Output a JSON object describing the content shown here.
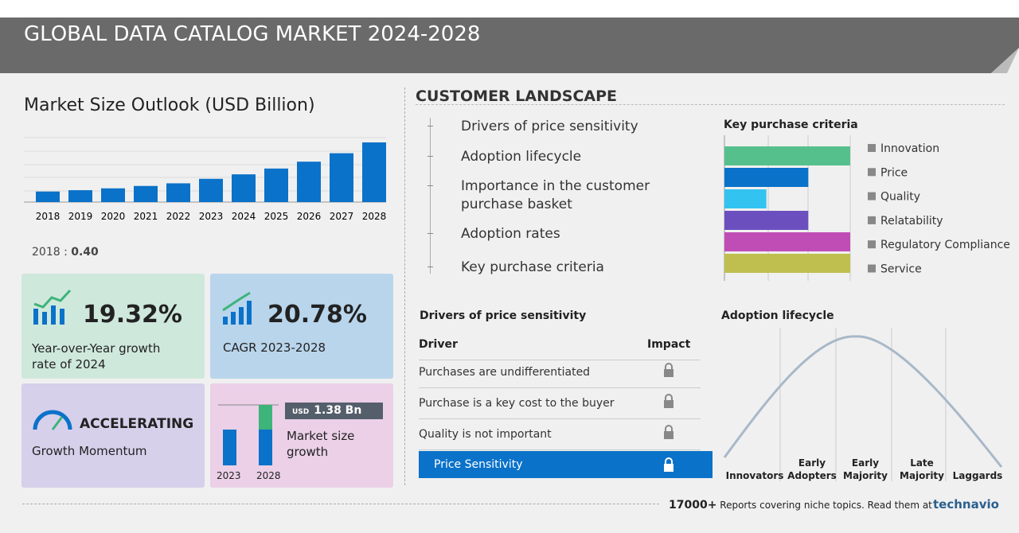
{
  "header": {
    "title": "GLOBAL DATA CATALOG MARKET 2024-2028"
  },
  "chart_data": [
    {
      "type": "bar",
      "title": "Market Size Outlook (USD Billion)",
      "categories": [
        "2018",
        "2019",
        "2020",
        "2021",
        "2022",
        "2023",
        "2024",
        "2025",
        "2026",
        "2027",
        "2028"
      ],
      "values": [
        0.4,
        0.45,
        0.52,
        0.61,
        0.71,
        0.88,
        1.05,
        1.27,
        1.53,
        1.85,
        2.26
      ],
      "color": "#0a72c9"
    },
    {
      "type": "hbar",
      "title": "Key purchase criteria",
      "categories": [
        "Innovation",
        "Price",
        "Quality",
        "Relatability",
        "Regulatory Compliance",
        "Service"
      ],
      "values": [
        3,
        2,
        1,
        2,
        3,
        3
      ],
      "colors": [
        "#56c08d",
        "#0a72c9",
        "#33c3f0",
        "#6c4fbf",
        "#c04db5",
        "#bfbf4f"
      ],
      "xlim": [
        0,
        3
      ]
    }
  ],
  "market_size": {
    "base_label": "2018 :",
    "base_value": "0.40"
  },
  "stats": {
    "yoy": {
      "value": "19.32%",
      "label": "Year-over-Year growth rate of 2024"
    },
    "cagr": {
      "value": "20.78%",
      "label": "CAGR 2023-2028"
    },
    "momentum": {
      "value": "ACCELERATING",
      "label": "Growth Momentum"
    },
    "growth": {
      "currency": "USD",
      "value": "1.38 Bn",
      "label": "Market size growth",
      "years": [
        "2023",
        "2028"
      ]
    }
  },
  "customer_landscape": {
    "title": "CUSTOMER LANDSCAPE",
    "items": [
      "Drivers of price sensitivity",
      "Adoption lifecycle",
      "Importance in the customer purchase basket",
      "Adoption rates",
      "Key purchase criteria"
    ]
  },
  "drivers": {
    "title": "Drivers of price sensitivity",
    "headers": [
      "Driver",
      "Impact"
    ],
    "rows": [
      "Purchases are undifferentiated",
      "Purchase is a key cost to the buyer",
      "Quality is not important"
    ],
    "highlight": "Price Sensitivity"
  },
  "adoption": {
    "title": "Adoption lifecycle",
    "stages": [
      "Innovators",
      "Early Adopters",
      "Early Majority",
      "Late Majority",
      "Laggards"
    ]
  },
  "footer": {
    "count": "17000+",
    "text": "Reports covering niche topics. Read them at",
    "brand": "technavio"
  }
}
